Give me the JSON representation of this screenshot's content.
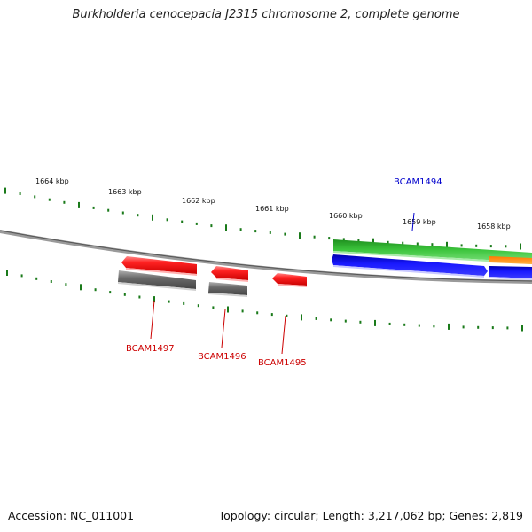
{
  "title": "Burkholderia cenocepacia J2315 chromosome 2, complete genome",
  "footer": {
    "accession": "Accession: NC_011001",
    "summary": "Topology: circular; Length: 3,217,062 bp; Genes: 2,819"
  },
  "colors": {
    "background": "#ffffff",
    "backbone": "#8a8a8a",
    "tick": "#1a7a1a",
    "red_gene": "#ff1a1a",
    "gray_gene": "#6e6e6e",
    "green_gene": "#33b833",
    "blue_gene": "#1414e6",
    "orange_gene": "#ff8c1a",
    "label_red": "#cc0000",
    "label_blue": "#0000cc"
  },
  "kbp_labels": [
    "1664 kbp",
    "1663 kbp",
    "1662 kbp",
    "1661 kbp",
    "1660 kbp",
    "1659 kbp",
    "1658 kbp"
  ],
  "gene_labels": [
    {
      "id": "bcam1494",
      "text": "BCAM1494",
      "color": "blue"
    },
    {
      "id": "bcam1495",
      "text": "BCAM1495",
      "color": "red"
    },
    {
      "id": "bcam1496",
      "text": "BCAM1496",
      "color": "red"
    },
    {
      "id": "bcam1497",
      "text": "BCAM1497",
      "color": "red"
    }
  ]
}
